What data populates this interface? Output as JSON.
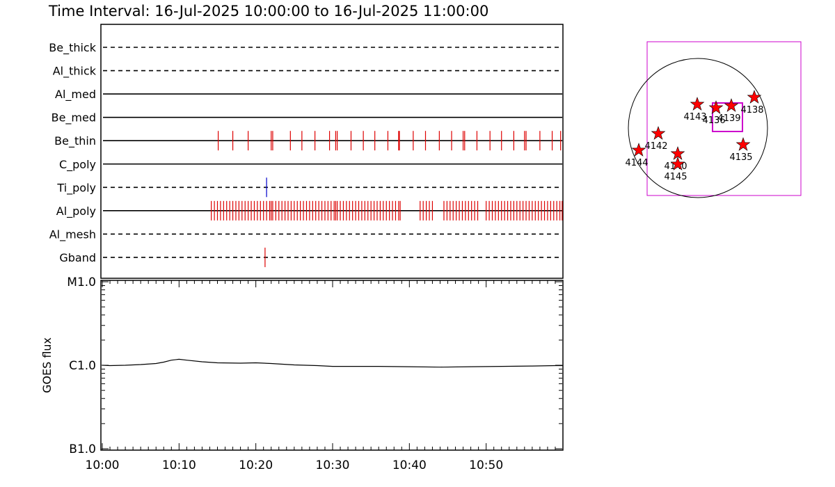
{
  "title": "Time Interval: 16-Jul-2025 10:00:00 to 16-Jul-2025 11:00:00",
  "colors": {
    "event": "#dd0000",
    "ti_event": "#0000cc",
    "map_box": "#cc00cc",
    "star": "#ff0000"
  },
  "chart_data": [
    {
      "type": "event-timeline",
      "x_range": [
        "10:00",
        "11:00"
      ],
      "x_unit": "minutes after 10:00",
      "channels": [
        {
          "name": "Be_thick",
          "style": "dashed",
          "events": []
        },
        {
          "name": "Al_thick",
          "style": "dashed",
          "events": []
        },
        {
          "name": "Al_med",
          "style": "solid",
          "events": []
        },
        {
          "name": "Be_med",
          "style": "solid",
          "events": []
        },
        {
          "name": "Be_thin",
          "style": "solid",
          "events": [
            15.1,
            17.0,
            19.0,
            22.0,
            22.2,
            24.5,
            26.0,
            27.7,
            29.6,
            30.4,
            30.6,
            32.4,
            34.0,
            35.5,
            37.2,
            38.6,
            38.7,
            40.5,
            42.1,
            43.9,
            45.5,
            47.0,
            47.2,
            48.8,
            50.5,
            52.0,
            53.6,
            55.0,
            55.2,
            57.0,
            58.6,
            59.7
          ]
        },
        {
          "name": "C_poly",
          "style": "solid",
          "events": []
        },
        {
          "name": "Ti_poly",
          "style": "dashed",
          "events": [
            21.4
          ]
        },
        {
          "name": "Al_poly",
          "style": "solid",
          "events": [
            14.2,
            14.6,
            15.0,
            15.4,
            15.8,
            16.2,
            16.6,
            17.0,
            17.4,
            17.8,
            18.2,
            18.6,
            19.0,
            19.4,
            19.8,
            20.2,
            20.6,
            21.0,
            21.4,
            21.8,
            22.0,
            22.2,
            22.6,
            23.0,
            23.4,
            23.8,
            24.2,
            24.6,
            25.0,
            25.4,
            25.8,
            26.2,
            26.6,
            27.0,
            27.4,
            27.8,
            28.2,
            28.6,
            29.0,
            29.4,
            29.8,
            30.2,
            30.4,
            30.6,
            31.0,
            31.4,
            31.8,
            32.2,
            32.6,
            33.0,
            33.4,
            33.8,
            34.2,
            34.6,
            35.0,
            35.4,
            35.8,
            36.2,
            36.6,
            37.0,
            37.4,
            37.8,
            38.2,
            38.6,
            38.8,
            41.4,
            41.8,
            42.2,
            42.6,
            43.0,
            44.5,
            44.9,
            45.3,
            45.7,
            46.1,
            46.5,
            46.9,
            47.3,
            47.7,
            48.1,
            48.5,
            48.9,
            50.0,
            50.4,
            50.8,
            51.2,
            51.6,
            52.0,
            52.4,
            52.8,
            53.2,
            53.6,
            54.0,
            54.4,
            54.8,
            55.2,
            55.6,
            56.0,
            56.4,
            56.8,
            57.2,
            57.6,
            58.0,
            58.4,
            58.8,
            59.2,
            59.6,
            59.9
          ]
        },
        {
          "name": "Al_mesh",
          "style": "dashed",
          "events": []
        },
        {
          "name": "Gband",
          "style": "dashed",
          "events": [
            21.2
          ]
        }
      ]
    },
    {
      "type": "line",
      "ylabel": "GOES flux",
      "yscale": "log",
      "yticks": [
        "M1.0",
        "C1.0",
        "B1.0"
      ],
      "ylim": [
        1e-07,
        1e-05
      ],
      "x_unit": "minutes after 10:00",
      "xticks": [
        "10:00",
        "10:10",
        "10:20",
        "10:30",
        "10:40",
        "10:50"
      ],
      "series": [
        {
          "x": [
            0,
            1,
            3,
            5,
            7,
            8,
            9,
            10,
            11,
            13,
            15,
            18,
            20,
            22,
            25,
            28,
            30,
            33,
            36,
            40,
            44,
            48,
            52,
            56,
            59,
            60
          ],
          "y": [
            1e-06,
            9.9e-07,
            1e-06,
            1.02e-06,
            1.05e-06,
            1.09e-06,
            1.15e-06,
            1.18e-06,
            1.15e-06,
            1.1e-06,
            1.07e-06,
            1.06e-06,
            1.07e-06,
            1.05e-06,
            1.01e-06,
            9.9e-07,
            9.7e-07,
            9.7e-07,
            9.7e-07,
            9.6e-07,
            9.5e-07,
            9.6e-07,
            9.7e-07,
            9.8e-07,
            9.9e-07,
            9.9e-07
          ]
        }
      ]
    },
    {
      "type": "scatter",
      "description_none": "",
      "points": [
        {
          "label": "4143",
          "x": -0.01,
          "y": 0.34
        },
        {
          "label": "4136",
          "x": 0.26,
          "y": 0.29
        },
        {
          "label": "4139",
          "x": 0.48,
          "y": 0.32
        },
        {
          "label": "4138",
          "x": 0.81,
          "y": 0.44
        },
        {
          "label": "4142",
          "x": -0.57,
          "y": -0.08
        },
        {
          "label": "4144",
          "x": -0.85,
          "y": -0.32
        },
        {
          "label": "4140",
          "x": -0.29,
          "y": -0.37
        },
        {
          "label": "4145",
          "x": -0.29,
          "y": -0.52
        },
        {
          "label": "4135",
          "x": 0.65,
          "y": -0.24
        }
      ]
    }
  ]
}
